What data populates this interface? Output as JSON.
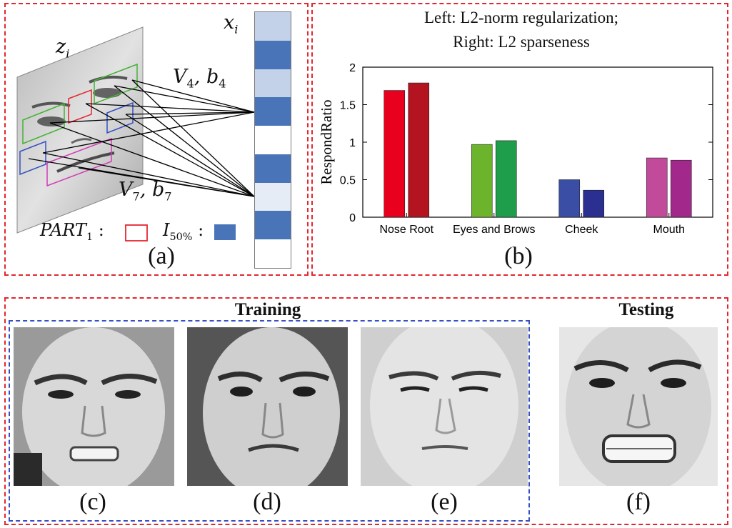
{
  "panel_a": {
    "z_label": "z",
    "z_sub": "i",
    "x_label": "x",
    "x_sub": "i",
    "v4_base": "V",
    "v4_sub": "4",
    "b4_base": "b",
    "b4_sub": "4",
    "v7_base": "V",
    "v7_sub": "7",
    "b7_base": "b",
    "b7_sub": "7",
    "legend_part_base": "PART",
    "legend_part_sub": "1",
    "legend_i_base": "I",
    "legend_i_sub": "50%",
    "legend_colon": ":",
    "caption": "(a)",
    "vector_cells": [
      "light",
      "dark",
      "light",
      "dark",
      "white",
      "dark",
      "pale",
      "dark",
      "white"
    ],
    "colors": {
      "dark": "#4a74b8",
      "light": "#c3d1e9",
      "pale": "#e6ecf6",
      "white": "#ffffff"
    }
  },
  "panel_b": {
    "caption": "(b)",
    "chart_data": {
      "type": "bar",
      "title": "Left: L2-norm regularization;",
      "subtitle": "Right: L2 sparseness",
      "ylabel": "RespondRatio",
      "xlabel": "",
      "ylim": [
        0,
        2
      ],
      "yticks": [
        "0",
        "0.5",
        "1",
        "1.5",
        "2"
      ],
      "categories": [
        "Nose Root",
        "Eyes and Brows",
        "Cheek",
        "Mouth"
      ],
      "series": [
        {
          "values": [
            1.69,
            0.97,
            0.5,
            0.79
          ],
          "colors": [
            "#e8001e",
            "#6cb42b",
            "#3a4ea5",
            "#c24a9a"
          ]
        },
        {
          "values": [
            1.79,
            1.02,
            0.36,
            0.76
          ],
          "colors": [
            "#b3141f",
            "#1e9e4a",
            "#2b2f8f",
            "#a3288c"
          ]
        }
      ],
      "grid": false
    }
  },
  "lower": {
    "training_label": "Training",
    "testing_label": "Testing",
    "captions": [
      "(c)",
      "(d)",
      "(e)",
      "(f)"
    ]
  },
  "colors": {
    "frame_red": "#e3262d",
    "frame_blue": "#3550c4"
  }
}
